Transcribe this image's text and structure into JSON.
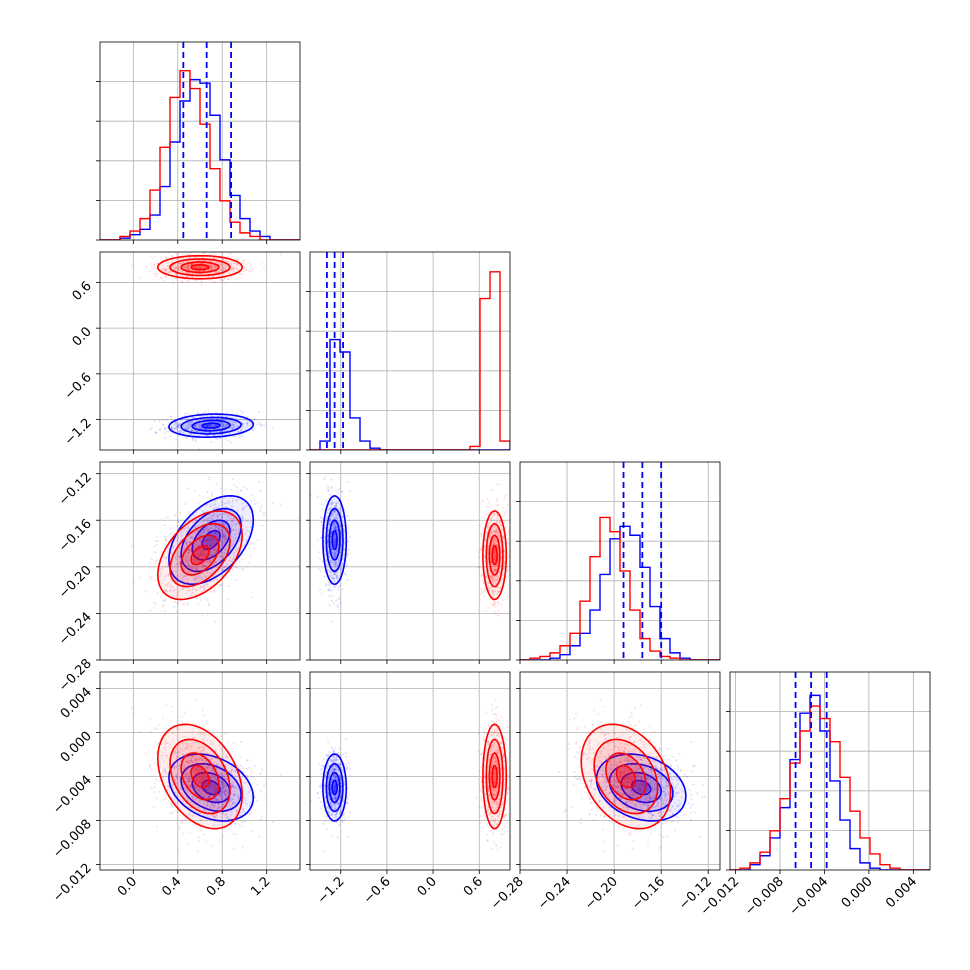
{
  "chart_data": {
    "type": "scatter",
    "title": "",
    "grid": true,
    "colors": {
      "blue": "#0000ff",
      "red": "#ff0000",
      "grid": "#b0b0b0"
    },
    "series": [],
    "parameters": [
      {
        "range": [
          -0.3,
          1.5
        ],
        "ticks": [
          "0.0",
          "0.4",
          "0.8",
          "1.2"
        ]
      },
      {
        "range": [
          -1.6,
          1.0
        ],
        "ticks": [
          "-1.2",
          "-0.6",
          "0.0",
          "0.6"
        ]
      },
      {
        "range": [
          -0.28,
          -0.11
        ],
        "ticks": [
          "-0.28",
          "-0.24",
          "-0.20",
          "-0.16",
          "-0.12"
        ]
      },
      {
        "range": [
          -0.0125,
          0.0055
        ],
        "ticks": [
          "-0.012",
          "-0.008",
          "-0.004",
          "0.000",
          "0.004"
        ]
      }
    ],
    "diagonal": [
      {
        "dashed_lines_blue": [
          0.45,
          0.66,
          0.88
        ],
        "hist_blue": [
          0,
          0,
          0.01,
          0.03,
          0.06,
          0.14,
          0.3,
          0.55,
          0.78,
          0.9,
          0.88,
          0.7,
          0.45,
          0.25,
          0.12,
          0.05,
          0.02,
          0,
          0,
          0
        ],
        "hist_red": [
          0,
          0,
          0.02,
          0.05,
          0.12,
          0.28,
          0.52,
          0.8,
          0.95,
          0.85,
          0.65,
          0.4,
          0.22,
          0.1,
          0.04,
          0.02,
          0,
          0,
          0,
          0
        ]
      },
      {
        "dashed_lines_blue": [
          -1.38,
          -1.28,
          -1.17
        ],
        "hist_blue": [
          0,
          0.05,
          0.62,
          0.55,
          0.18,
          0.05,
          0.01,
          0,
          0,
          0,
          0,
          0,
          0,
          0,
          0,
          0,
          0,
          0,
          0,
          0
        ],
        "hist_red": [
          0,
          0,
          0,
          0,
          0,
          0,
          0,
          0,
          0,
          0,
          0,
          0,
          0,
          0,
          0,
          0,
          0.02,
          0.85,
          1.0,
          0.05
        ]
      },
      {
        "dashed_lines_blue": [
          -0.192,
          -0.176,
          -0.16
        ],
        "hist_blue": [
          0,
          0,
          0,
          0.01,
          0.03,
          0.08,
          0.15,
          0.28,
          0.48,
          0.68,
          0.75,
          0.7,
          0.52,
          0.3,
          0.12,
          0.04,
          0.01,
          0,
          0,
          0
        ],
        "hist_red": [
          0,
          0.01,
          0.02,
          0.04,
          0.08,
          0.15,
          0.33,
          0.58,
          0.8,
          0.72,
          0.5,
          0.28,
          0.12,
          0.05,
          0.02,
          0.01,
          0,
          0,
          0,
          0
        ]
      },
      {
        "dashed_lines_blue": [
          -0.0066,
          -0.0052,
          -0.0038
        ],
        "hist_blue": [
          0,
          0,
          0.03,
          0.08,
          0.18,
          0.35,
          0.62,
          0.88,
          0.98,
          0.78,
          0.5,
          0.28,
          0.12,
          0.04,
          0.01,
          0,
          0,
          0,
          0,
          0
        ],
        "hist_red": [
          0,
          0.01,
          0.04,
          0.1,
          0.22,
          0.4,
          0.6,
          0.78,
          0.92,
          0.85,
          0.72,
          0.52,
          0.33,
          0.18,
          0.09,
          0.03,
          0.01,
          0,
          0,
          0
        ]
      }
    ],
    "populations": [
      {
        "color": "blue",
        "means": [
          0.7,
          -1.28,
          -0.177,
          -0.005
        ],
        "sds": [
          0.2,
          0.08,
          0.02,
          0.0016
        ],
        "corr": [
          [
            1,
            0.1,
            0.45,
            -0.3
          ],
          [
            0.1,
            1,
            0,
            0
          ],
          [
            0.45,
            0,
            1,
            -0.25
          ],
          [
            -0.3,
            0,
            -0.25,
            1
          ]
        ]
      },
      {
        "color": "red",
        "means": [
          0.6,
          0.8,
          -0.19,
          -0.004
        ],
        "sds": [
          0.2,
          0.08,
          0.02,
          0.0025
        ],
        "corr": [
          [
            1,
            0,
            0.45,
            -0.35
          ],
          [
            0,
            1,
            0,
            0
          ],
          [
            0.45,
            0,
            1,
            -0.3
          ],
          [
            -0.35,
            0,
            -0.3,
            1
          ]
        ]
      }
    ]
  }
}
